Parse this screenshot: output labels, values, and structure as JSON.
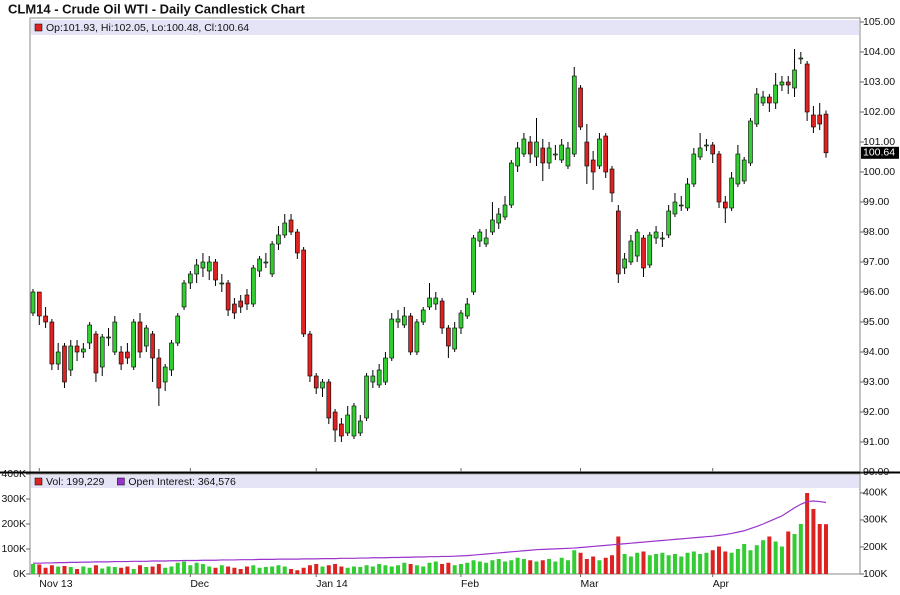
{
  "chart_data": [
    {
      "type": "candlestick",
      "title": "CLM14 - Crude Oil WTI - Daily Candlestick Chart",
      "legend_text": "Op:101.93, Hi:102.05, Lo:100.48, Cl:100.64",
      "last_label": "100.64",
      "up_color": "#33cc33",
      "down_color": "#dd2222",
      "categories": [
        null,
        "Nov 13",
        null,
        null,
        null,
        null,
        null,
        null,
        null,
        null,
        null,
        null,
        null,
        null,
        null,
        null,
        null,
        null,
        null,
        null,
        null,
        null,
        null,
        null,
        null,
        "Dec",
        null,
        null,
        null,
        null,
        null,
        null,
        null,
        null,
        null,
        null,
        null,
        null,
        null,
        null,
        null,
        null,
        null,
        null,
        null,
        "Jan 14",
        null,
        null,
        null,
        null,
        null,
        null,
        null,
        null,
        null,
        null,
        null,
        null,
        null,
        null,
        null,
        null,
        null,
        null,
        null,
        null,
        null,
        null,
        "Feb",
        null,
        null,
        null,
        null,
        null,
        null,
        null,
        null,
        null,
        null,
        null,
        null,
        null,
        null,
        null,
        null,
        null,
        null,
        "Mar",
        null,
        null,
        null,
        null,
        null,
        null,
        null,
        null,
        null,
        null,
        null,
        null,
        null,
        null,
        null,
        null,
        null,
        null,
        null,
        null,
        "Apr",
        null,
        null,
        null,
        null,
        null,
        null,
        null,
        null,
        null,
        null,
        null,
        null,
        null,
        null,
        null,
        null,
        null,
        null
      ],
      "open": [
        95.3,
        96.0,
        95.2,
        95.0,
        93.6,
        94.2,
        93.4,
        94.2,
        94.0,
        94.3,
        94.6,
        93.5,
        94.5,
        94.0,
        94.0,
        94.0,
        93.5,
        95.0,
        94.2,
        94.6,
        93.8,
        93.0,
        93.4,
        94.3,
        95.5,
        96.3,
        96.6,
        96.8,
        96.7,
        97.0,
        96.3,
        96.3,
        95.6,
        95.7,
        95.9,
        95.6,
        96.7,
        97.0,
        96.6,
        97.6,
        97.9,
        98.4,
        98.0,
        97.4,
        94.6,
        93.2,
        92.8,
        93.0,
        92.0,
        91.6,
        91.3,
        91.2,
        91.3,
        91.8,
        93.0,
        92.9,
        93.0,
        93.8,
        95.0,
        94.9,
        95.2,
        94.0,
        95.0,
        95.5,
        95.6,
        95.7,
        94.8,
        94.1,
        94.8,
        95.2,
        96.0,
        97.7,
        97.6,
        98.0,
        98.3,
        98.5,
        98.9,
        100.2,
        100.6,
        101.0,
        100.5,
        100.8,
        100.3,
        100.6,
        100.4,
        100.2,
        100.6,
        102.8,
        101.0,
        100.4,
        100.2,
        101.2,
        100.1,
        98.7,
        96.8,
        97.0,
        97.2,
        97.8,
        96.9,
        97.8,
        97.8,
        97.9,
        98.6,
        98.9,
        98.8,
        99.6,
        100.5,
        100.9,
        100.9,
        100.6,
        99.0,
        98.8,
        99.6,
        99.7,
        100.3,
        101.6,
        102.3,
        102.5,
        102.3,
        102.9,
        103.0,
        102.8,
        103.8,
        103.6,
        101.9,
        101.9,
        101.93
      ],
      "high": [
        96.1,
        96.0,
        95.5,
        95.1,
        94.3,
        94.3,
        94.4,
        94.4,
        94.3,
        95.0,
        94.7,
        94.6,
        94.8,
        95.2,
        94.2,
        94.3,
        95.1,
        95.3,
        94.9,
        94.7,
        94.1,
        93.6,
        94.4,
        95.3,
        96.4,
        96.7,
        97.1,
        97.3,
        97.2,
        97.1,
        96.6,
        96.4,
        95.8,
        95.9,
        96.1,
        96.9,
        97.2,
        97.3,
        97.7,
        98.2,
        98.6,
        98.6,
        98.1,
        97.5,
        94.7,
        93.3,
        93.1,
        93.1,
        92.1,
        91.8,
        92.2,
        92.3,
        91.9,
        93.3,
        93.4,
        93.6,
        94.0,
        95.3,
        95.4,
        95.5,
        95.3,
        95.1,
        95.5,
        96.3,
        96.0,
        95.8,
        94.9,
        95.0,
        95.4,
        95.8,
        97.9,
        98.1,
        98.1,
        99.0,
        98.8,
        99.2,
        100.4,
        101.0,
        101.3,
        101.2,
        101.8,
        101.1,
        101.0,
        100.9,
        101.1,
        101.0,
        103.5,
        102.9,
        101.6,
        100.7,
        101.3,
        101.3,
        100.2,
        98.9,
        97.3,
        97.9,
        98.1,
        97.9,
        98.0,
        98.2,
        98.0,
        98.9,
        99.3,
        99.2,
        99.8,
        100.8,
        101.3,
        101.1,
        101.0,
        100.7,
        99.2,
        100.0,
        100.9,
        100.5,
        101.8,
        102.8,
        102.7,
        102.6,
        103.3,
        103.2,
        103.2,
        104.1,
        104.0,
        103.7,
        102.2,
        102.3,
        102.05
      ],
      "low": [
        95.2,
        94.9,
        94.8,
        93.4,
        93.4,
        92.8,
        93.2,
        93.7,
        93.8,
        94.1,
        93.0,
        93.2,
        94.2,
        93.9,
        93.4,
        93.6,
        93.4,
        93.8,
        94.0,
        93.0,
        92.2,
        92.7,
        93.2,
        94.2,
        95.4,
        96.1,
        96.3,
        96.5,
        96.4,
        96.2,
        96.0,
        95.2,
        95.1,
        95.3,
        95.4,
        95.5,
        96.5,
        96.8,
        96.5,
        97.4,
        97.8,
        97.9,
        97.1,
        94.5,
        93.0,
        92.6,
        92.5,
        91.6,
        91.0,
        91.0,
        91.2,
        91.1,
        91.2,
        91.7,
        92.8,
        92.8,
        92.9,
        93.7,
        94.8,
        94.8,
        93.9,
        93.9,
        94.9,
        95.4,
        95.4,
        94.6,
        93.8,
        94.0,
        94.6,
        95.1,
        95.9,
        97.5,
        97.5,
        97.9,
        98.1,
        98.4,
        98.8,
        100.0,
        100.5,
        100.3,
        100.2,
        99.7,
        100.1,
        100.4,
        100.3,
        100.1,
        100.5,
        101.4,
        99.6,
        99.4,
        100.1,
        99.8,
        99.0,
        96.3,
        96.6,
        96.9,
        97.0,
        96.5,
        96.8,
        97.6,
        97.5,
        97.8,
        98.5,
        98.7,
        98.7,
        99.5,
        100.4,
        100.7,
        100.3,
        98.8,
        98.3,
        98.7,
        99.5,
        99.6,
        100.2,
        101.5,
        102.2,
        102.0,
        102.1,
        102.7,
        102.6,
        102.5,
        103.6,
        101.7,
        101.3,
        101.4,
        100.48
      ],
      "close": [
        96.0,
        95.2,
        95.0,
        93.6,
        94.0,
        93.0,
        94.2,
        94.0,
        94.1,
        94.9,
        93.3,
        94.5,
        94.5,
        95.0,
        93.6,
        93.8,
        95.0,
        94.0,
        94.8,
        93.8,
        92.8,
        93.5,
        94.3,
        95.2,
        96.3,
        96.6,
        96.9,
        97.0,
        97.0,
        96.4,
        96.3,
        95.4,
        95.3,
        95.5,
        95.6,
        96.8,
        97.1,
        97.0,
        97.6,
        97.9,
        98.3,
        98.0,
        97.3,
        94.6,
        93.2,
        92.8,
        93.0,
        91.8,
        91.4,
        91.2,
        91.9,
        92.2,
        91.7,
        93.2,
        93.2,
        93.4,
        93.8,
        95.1,
        95.1,
        95.2,
        94.0,
        95.0,
        95.4,
        95.8,
        95.8,
        94.8,
        94.2,
        94.8,
        95.3,
        95.6,
        97.8,
        98.0,
        97.8,
        98.4,
        98.6,
        98.9,
        100.3,
        100.8,
        101.1,
        100.6,
        101.0,
        100.3,
        100.8,
        100.6,
        100.9,
        100.8,
        103.2,
        101.5,
        100.2,
        100.0,
        101.1,
        100.0,
        99.3,
        96.6,
        97.1,
        97.7,
        98.0,
        96.8,
        97.9,
        98.0,
        97.8,
        98.7,
        99.0,
        98.9,
        99.6,
        100.6,
        100.8,
        100.9,
        100.6,
        99.0,
        98.8,
        99.8,
        100.6,
        100.4,
        101.7,
        102.6,
        102.5,
        102.3,
        102.9,
        103.0,
        102.9,
        103.4,
        103.8,
        102.0,
        101.5,
        101.6,
        100.64
      ],
      "ylim": [
        90,
        105
      ],
      "yticks": [
        {
          "value": 90,
          "label": "90.00"
        },
        {
          "value": 91,
          "label": "91.00"
        },
        {
          "value": 92,
          "label": "92.00"
        },
        {
          "value": 93,
          "label": "93.00"
        },
        {
          "value": 94,
          "label": "94.00"
        },
        {
          "value": 95,
          "label": "95.00"
        },
        {
          "value": 96,
          "label": "96.00"
        },
        {
          "value": 97,
          "label": "97.00"
        },
        {
          "value": 98,
          "label": "98.00"
        },
        {
          "value": 99,
          "label": "99.00"
        },
        {
          "value": 100,
          "label": "100.00"
        },
        {
          "value": 101,
          "label": "101.00"
        },
        {
          "value": 102,
          "label": "102.00"
        },
        {
          "value": 103,
          "label": "103.00"
        },
        {
          "value": 104,
          "label": "104.00"
        },
        {
          "value": 105,
          "label": "105.00"
        }
      ]
    },
    {
      "type": "volume",
      "series": [
        {
          "name": "Vol: 199,229",
          "type": "bar",
          "color": "#dd2222",
          "values": [
            40000,
            38000,
            25000,
            35000,
            30000,
            32000,
            28000,
            20000,
            30000,
            25000,
            35000,
            22000,
            30000,
            28000,
            25000,
            30000,
            20000,
            35000,
            28000,
            30000,
            40000,
            25000,
            30000,
            45000,
            50000,
            35000,
            45000,
            40000,
            30000,
            25000,
            35000,
            30000,
            25000,
            20000,
            30000,
            35000,
            25000,
            28000,
            30000,
            35000,
            30000,
            20000,
            15000,
            25000,
            35000,
            40000,
            30000,
            35000,
            40000,
            30000,
            25000,
            30000,
            28000,
            35000,
            30000,
            40000,
            35000,
            30000,
            35000,
            45000,
            40000,
            35000,
            30000,
            45000,
            50000,
            40000,
            45000,
            35000,
            40000,
            45000,
            55000,
            50000,
            45000,
            55000,
            60000,
            50000,
            55000,
            65000,
            60000,
            55000,
            50000,
            55000,
            60000,
            50000,
            65000,
            55000,
            95000,
            85000,
            60000,
            70000,
            55000,
            65000,
            75000,
            150000,
            80000,
            70000,
            85000,
            90000,
            75000,
            80000,
            85000,
            75000,
            80000,
            70000,
            85000,
            90000,
            80000,
            85000,
            95000,
            110000,
            90000,
            85000,
            100000,
            120000,
            95000,
            115000,
            135000,
            150000,
            130000,
            110000,
            170000,
            160000,
            200000,
            324000,
            260000,
            200000,
            199229
          ]
        },
        {
          "name": "Open Interest: 364,576",
          "type": "line",
          "color": "#9933cc",
          "axis": "y2",
          "values": [
            140000,
            140000,
            141000,
            141000,
            142000,
            142000,
            143000,
            143000,
            144000,
            144000,
            145000,
            145000,
            145000,
            146000,
            146000,
            146000,
            147000,
            147000,
            147000,
            148000,
            148000,
            148000,
            149000,
            149000,
            150000,
            150000,
            150000,
            151000,
            151000,
            151000,
            152000,
            152000,
            152000,
            153000,
            153000,
            153000,
            154000,
            154000,
            154000,
            155000,
            155000,
            155000,
            155000,
            156000,
            156000,
            156000,
            157000,
            157000,
            157000,
            158000,
            158000,
            158000,
            159000,
            159000,
            160000,
            160000,
            160000,
            161000,
            161000,
            162000,
            162000,
            163000,
            163000,
            164000,
            164000,
            165000,
            165000,
            166000,
            167000,
            168000,
            170000,
            172000,
            174000,
            176000,
            178000,
            180000,
            182000,
            184000,
            186000,
            188000,
            190000,
            191000,
            192000,
            193000,
            194000,
            195000,
            196000,
            198000,
            200000,
            202000,
            204000,
            206000,
            208000,
            210000,
            212000,
            214000,
            216000,
            218000,
            220000,
            222000,
            224000,
            226000,
            228000,
            230000,
            232000,
            234000,
            236000,
            238000,
            240000,
            243000,
            246000,
            250000,
            255000,
            260000,
            268000,
            276000,
            285000,
            295000,
            305000,
            315000,
            330000,
            345000,
            358000,
            368000,
            370000,
            368000,
            364576
          ]
        }
      ],
      "ylim": [
        0,
        400000
      ],
      "yticks": [
        {
          "value": 0,
          "label": "0K"
        },
        {
          "value": 100000,
          "label": "100K"
        },
        {
          "value": 200000,
          "label": "200K"
        },
        {
          "value": 300000,
          "label": "300K"
        },
        {
          "value": 400000,
          "label": "400K"
        }
      ],
      "y2lim": [
        100000,
        470000
      ],
      "y2ticks": [
        {
          "value": 100000,
          "label": "100K"
        },
        {
          "value": 200000,
          "label": "200K"
        },
        {
          "value": 300000,
          "label": "300K"
        },
        {
          "value": 400000,
          "label": "400K"
        }
      ]
    }
  ]
}
